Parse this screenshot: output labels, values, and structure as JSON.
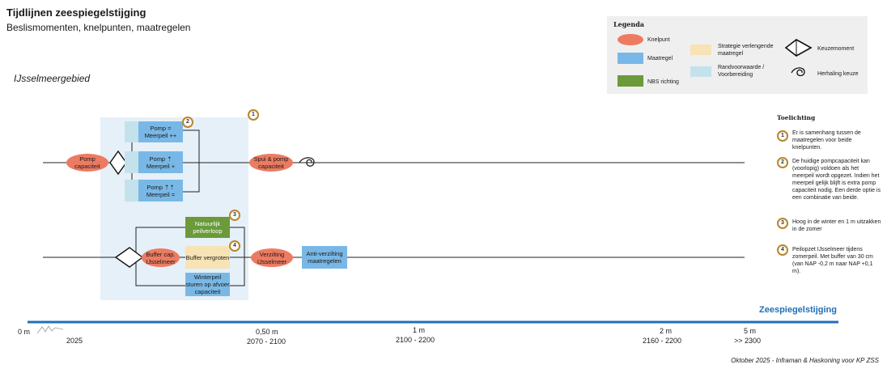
{
  "header": {
    "title": "Tijdlijnen zeespiegelstijging",
    "subtitle": "Beslismomenten, knelpunten, maatregelen"
  },
  "region": "IJsselmeergebied",
  "legend": {
    "title": "Legenda",
    "knelpunt": "Knelpunt",
    "maatregel": "Maatregel",
    "nbs": "NBS richting",
    "strategie": "Strategie verlengende maatregel",
    "randvoorwaarde": "Randvoorwaarde / Voorbereiding",
    "keuzemoment": "Keuzemoment",
    "herhaling": "Herhaling keuze"
  },
  "diagram": {
    "pomp_capaciteit": "Pomp capaciteit",
    "pomp_gelijk": "Pomp = Meerpeil ++",
    "pomp_up": "Pomp ⇡ Meerpeil +",
    "pomp_upup": "Pomp ⇡⇡ Meerpeil =",
    "spui_pomp": "Spui & pomp capaciteit",
    "natuurlijk": "Natuurlijk peilverloop",
    "buffer_cap": "Buffer cap. IJsselmeer",
    "buffer_vergroten": "Buffer vergroten",
    "winterpeil": "Winterpeil sturen op afvoer capaciteit",
    "verzilting": "Verzilting IJsselmeer",
    "anti_verzilting": "Anti-verzilting maatregelen",
    "markers": [
      "1",
      "2",
      "3",
      "4"
    ]
  },
  "toelichting": {
    "heading": "Toelichting",
    "items": [
      {
        "num": "1",
        "text": "Er is samenhang tussen de maatregelen voor beide knelpunten."
      },
      {
        "num": "2",
        "text": "De huidige pompcapaciteit kan (voorlopig) voldoen als het meerpeil wordt opgezet. Indien het meerpeil gelijk blijft is extra pomp capaciteit nodig. Een derde optie is een combinatie van beide."
      },
      {
        "num": "3",
        "text": "Hoog in de winter en 1 m uitzakken in de zomer"
      },
      {
        "num": "4",
        "text": "Peilopzet IJsselmeer tijdens zomerpeil. Met buffer van 30 cm (van NAP -0,2 m naar NAP +0,1 m)."
      }
    ]
  },
  "timeline": {
    "label": "Zeespiegelstijging",
    "ticks": [
      {
        "top": "0 m",
        "bottom": "2025"
      },
      {
        "top": "0,50 m",
        "bottom": "2070 - 2100"
      },
      {
        "top": "1 m",
        "bottom": "2100 - 2200"
      },
      {
        "top": "2 m",
        "bottom": "2160 - 2200"
      },
      {
        "top": "5 m",
        "bottom": ">> 2300"
      }
    ]
  },
  "credit": "Oktober 2025 - Inframan & Haskoning voor KP ZSS",
  "colors": {
    "knelpunt": "#ec7b61",
    "maatregel": "#79b8e6",
    "nbs": "#6a9a3a",
    "strategie": "#f7e3b4",
    "randvoorwaarde": "#c3e2ec",
    "timeline": "#1f6fb5",
    "marker": "#b8862a"
  }
}
